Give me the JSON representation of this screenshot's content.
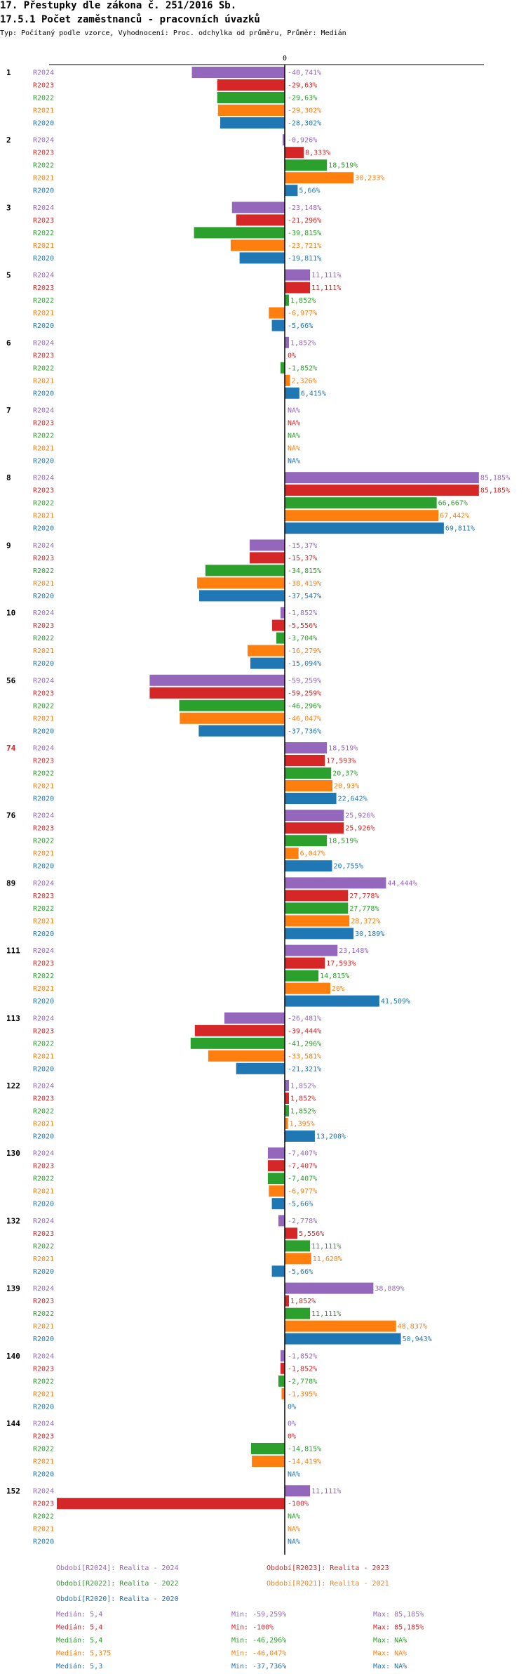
{
  "header": {
    "title1": "17. Přestupky dle zákona č. 251/2016 Sb.",
    "title2": "17.5.1 Počet zaměstnanců - pracovních úvazků",
    "subtitle": "Typ: Počítaný podle vzorce, Vyhodnocení: Proc. odchylka od průměru, Průměr: Medián"
  },
  "chart_data": {
    "type": "bar",
    "orientation": "horizontal",
    "zero_label": "0",
    "value_suffix": "%",
    "xlim": [
      -100,
      85.185
    ],
    "series": [
      {
        "code": "R2024",
        "color": "#9467bd"
      },
      {
        "code": "R2023",
        "color": "#d62728"
      },
      {
        "code": "R2022",
        "color": "#2ca02c"
      },
      {
        "code": "R2021",
        "color": "#ff7f0e"
      },
      {
        "code": "R2020",
        "color": "#1f77b4"
      }
    ],
    "groups": [
      {
        "label": "1",
        "highlight": false,
        "values": [
          -40.741,
          -29.63,
          -29.63,
          -29.302,
          -28.302
        ],
        "labels": [
          "-40,741",
          "-29,63",
          "-29,63",
          "-29,302",
          "-28,302"
        ]
      },
      {
        "label": "2",
        "highlight": false,
        "values": [
          -0.926,
          8.333,
          18.519,
          30.233,
          5.66
        ],
        "labels": [
          "-0,926",
          "8,333",
          "18,519",
          "30,233",
          "5,66"
        ]
      },
      {
        "label": "3",
        "highlight": false,
        "values": [
          -23.148,
          -21.296,
          -39.815,
          -23.721,
          -19.811
        ],
        "labels": [
          "-23,148",
          "-21,296",
          "-39,815",
          "-23,721",
          "-19,811"
        ]
      },
      {
        "label": "5",
        "highlight": false,
        "values": [
          11.111,
          11.111,
          1.852,
          -6.977,
          -5.66
        ],
        "labels": [
          "11,111",
          "11,111",
          "1,852",
          "-6,977",
          "-5,66"
        ]
      },
      {
        "label": "6",
        "highlight": false,
        "values": [
          1.852,
          0,
          -1.852,
          2.326,
          6.415
        ],
        "labels": [
          "1,852",
          "0",
          "-1,852",
          "2,326",
          "6,415"
        ]
      },
      {
        "label": "7",
        "highlight": false,
        "values": [
          null,
          null,
          null,
          null,
          null
        ],
        "labels": [
          "NA",
          "NA",
          "NA",
          "NA",
          "NA"
        ]
      },
      {
        "label": "8",
        "highlight": false,
        "values": [
          85.185,
          85.185,
          66.667,
          67.442,
          69.811
        ],
        "labels": [
          "85,185",
          "85,185",
          "66,667",
          "67,442",
          "69,811"
        ]
      },
      {
        "label": "9",
        "highlight": false,
        "values": [
          -15.37,
          -15.37,
          -34.815,
          -38.419,
          -37.547
        ],
        "labels": [
          "-15,37",
          "-15,37",
          "-34,815",
          "-38,419",
          "-37,547"
        ]
      },
      {
        "label": "10",
        "highlight": false,
        "values": [
          -1.852,
          -5.556,
          -3.704,
          -16.279,
          -15.094
        ],
        "labels": [
          "-1,852",
          "-5,556",
          "-3,704",
          "-16,279",
          "-15,094"
        ]
      },
      {
        "label": "56",
        "highlight": false,
        "values": [
          -59.259,
          -59.259,
          -46.296,
          -46.047,
          -37.736
        ],
        "labels": [
          "-59,259",
          "-59,259",
          "-46,296",
          "-46,047",
          "-37,736"
        ]
      },
      {
        "label": "74",
        "highlight": true,
        "values": [
          18.519,
          17.593,
          20.37,
          20.93,
          22.642
        ],
        "labels": [
          "18,519",
          "17,593",
          "20,37",
          "20,93",
          "22,642"
        ]
      },
      {
        "label": "76",
        "highlight": false,
        "values": [
          25.926,
          25.926,
          18.519,
          6.047,
          20.755
        ],
        "labels": [
          "25,926",
          "25,926",
          "18,519",
          "6,047",
          "20,755"
        ]
      },
      {
        "label": "89",
        "highlight": false,
        "values": [
          44.444,
          27.778,
          27.778,
          28.372,
          30.189
        ],
        "labels": [
          "44,444",
          "27,778",
          "27,778",
          "28,372",
          "30,189"
        ]
      },
      {
        "label": "111",
        "highlight": false,
        "values": [
          23.148,
          17.593,
          14.815,
          20,
          41.509
        ],
        "labels": [
          "23,148",
          "17,593",
          "14,815",
          "20",
          "41,509"
        ]
      },
      {
        "label": "113",
        "highlight": false,
        "values": [
          -26.481,
          -39.444,
          -41.296,
          -33.581,
          -21.321
        ],
        "labels": [
          "-26,481",
          "-39,444",
          "-41,296",
          "-33,581",
          "-21,321"
        ]
      },
      {
        "label": "122",
        "highlight": false,
        "values": [
          1.852,
          1.852,
          1.852,
          1.395,
          13.208
        ],
        "labels": [
          "1,852",
          "1,852",
          "1,852",
          "1,395",
          "13,208"
        ]
      },
      {
        "label": "130",
        "highlight": false,
        "values": [
          -7.407,
          -7.407,
          -7.407,
          -6.977,
          -5.66
        ],
        "labels": [
          "-7,407",
          "-7,407",
          "-7,407",
          "-6,977",
          "-5,66"
        ]
      },
      {
        "label": "132",
        "highlight": false,
        "values": [
          -2.778,
          5.556,
          11.111,
          11.628,
          -5.66
        ],
        "labels": [
          "-2,778",
          "5,556",
          "11,111",
          "11,628",
          "-5,66"
        ]
      },
      {
        "label": "139",
        "highlight": false,
        "values": [
          38.889,
          1.852,
          11.111,
          48.837,
          50.943
        ],
        "labels": [
          "38,889",
          "1,852",
          "11,111",
          "48,837",
          "50,943"
        ]
      },
      {
        "label": "140",
        "highlight": false,
        "values": [
          -1.852,
          -1.852,
          -2.778,
          -1.395,
          0
        ],
        "labels": [
          "-1,852",
          "-1,852",
          "-2,778",
          "-1,395",
          "0"
        ]
      },
      {
        "label": "144",
        "highlight": false,
        "values": [
          0,
          0,
          -14.815,
          -14.419,
          null
        ],
        "labels": [
          "0",
          "0",
          "-14,815",
          "-14,419",
          "NA"
        ]
      },
      {
        "label": "152",
        "highlight": false,
        "values": [
          11.111,
          -100,
          null,
          null,
          null
        ],
        "labels": [
          "11,111",
          "-100",
          "NA",
          "NA",
          "NA"
        ]
      }
    ],
    "legend": [
      {
        "text": "Období[R2024]: Realita - 2024",
        "color": "#9467bd"
      },
      {
        "text": "Období[R2023]: Realita - 2023",
        "color": "#d62728"
      },
      {
        "text": "Období[R2022]: Realita - 2022",
        "color": "#2ca02c"
      },
      {
        "text": "Období[R2021]: Realita - 2021",
        "color": "#ff7f0e"
      },
      {
        "text": "Období[R2020]: Realita - 2020",
        "color": "#1f77b4"
      }
    ],
    "stats": [
      {
        "median": "Medián: 5,4",
        "min": "Min: -59,259%",
        "max": "Max: 85,185%",
        "color": "#9467bd"
      },
      {
        "median": "Medián: 5,4",
        "min": "Min: -100%",
        "max": "Max: 85,185%",
        "color": "#d62728"
      },
      {
        "median": "Medián: 5,4",
        "min": "Min: -46,296%",
        "max": "Max: NA%",
        "color": "#2ca02c"
      },
      {
        "median": "Medián: 5,375",
        "min": "Min: -46,047%",
        "max": "Max: NA%",
        "color": "#ff7f0e"
      },
      {
        "median": "Medián: 5,3",
        "min": "Min: -37,736%",
        "max": "Max: NA%",
        "color": "#1f77b4"
      }
    ]
  }
}
